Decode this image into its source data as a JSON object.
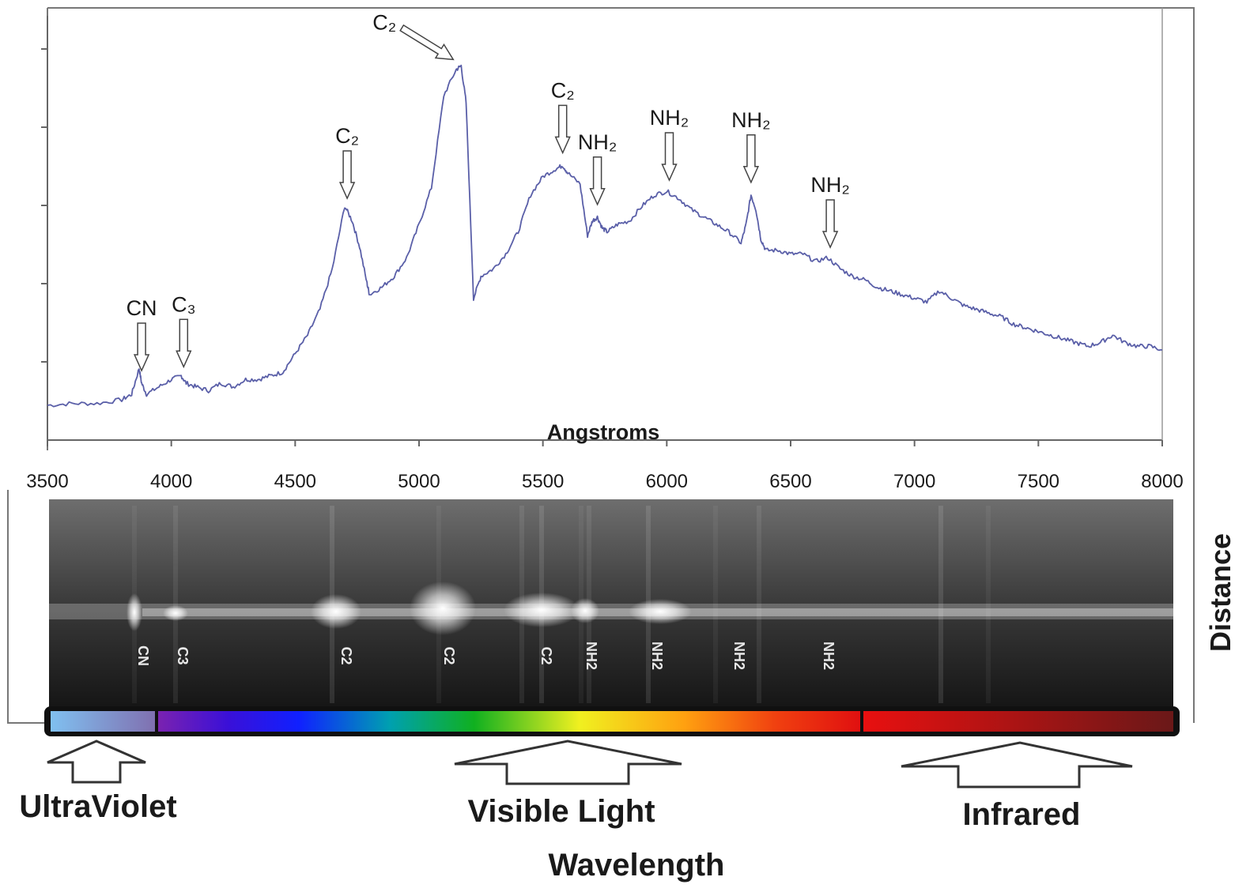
{
  "chart_data": {
    "type": "line",
    "xlabel": "Angstroms",
    "xlim": [
      3500,
      8000
    ],
    "x_ticks": [
      3500,
      4000,
      4500,
      5000,
      5500,
      6000,
      6500,
      7000,
      7500,
      8000
    ],
    "ylim": [
      0,
      100
    ],
    "series": [
      {
        "x": [
          3500,
          3600,
          3700,
          3800,
          3840,
          3870,
          3880,
          3900,
          3950,
          4000,
          4040,
          4060,
          4100,
          4150,
          4200,
          4250,
          4300,
          4350,
          4400,
          4450,
          4500,
          4550,
          4600,
          4650,
          4700,
          4730,
          4760,
          4790,
          4800,
          4850,
          4900,
          4950,
          5000,
          5050,
          5100,
          5150,
          5170,
          5190,
          5220,
          5250,
          5300,
          5350,
          5400,
          5450,
          5500,
          5550,
          5580,
          5600,
          5650,
          5680,
          5700,
          5720,
          5740,
          5760,
          5800,
          5850,
          5900,
          5950,
          6000,
          6050,
          6100,
          6150,
          6200,
          6250,
          6300,
          6320,
          6340,
          6360,
          6380,
          6400,
          6450,
          6500,
          6550,
          6600,
          6650,
          6700,
          6750,
          6800,
          6850,
          6900,
          6950,
          7000,
          7050,
          7100,
          7150,
          7200,
          7250,
          7300,
          7350,
          7400,
          7450,
          7500,
          7550,
          7600,
          7650,
          7700,
          7750,
          7800,
          7850,
          7900,
          7950,
          8000
        ],
        "y": [
          3,
          3.5,
          3.5,
          4.5,
          6,
          13,
          9,
          6,
          8,
          10,
          11,
          9,
          8,
          7,
          9,
          8,
          10,
          10,
          11,
          12,
          17,
          22,
          29,
          40,
          57,
          53,
          46,
          36,
          33,
          35,
          38,
          43,
          52,
          62,
          87,
          94,
          95,
          85,
          32,
          38,
          40,
          44,
          50,
          60,
          65,
          67,
          68,
          66,
          63,
          49,
          53,
          54,
          51,
          50,
          52,
          53,
          57,
          60,
          61,
          59,
          56,
          54,
          52,
          50,
          47,
          52,
          60,
          56,
          48,
          45,
          45,
          44,
          44,
          42,
          43,
          40,
          38,
          37,
          35,
          34,
          33,
          32,
          31,
          34,
          32,
          30,
          29,
          28,
          27,
          25,
          24,
          23,
          22,
          21,
          20,
          19,
          20,
          22,
          20,
          19,
          19,
          18
        ]
      }
    ],
    "annotations": [
      {
        "label": "CN",
        "x": 3880
      },
      {
        "label": "C₃",
        "x": 4050
      },
      {
        "label": "C₂",
        "x": 4710
      },
      {
        "label": "C₂",
        "x": 5170
      },
      {
        "label": "C₂",
        "x": 5580
      },
      {
        "label": "NH₂",
        "x": 5720
      },
      {
        "label": "NH₂",
        "x": 6010
      },
      {
        "label": "NH₂",
        "x": 6340
      },
      {
        "label": "NH₂",
        "x": 6660
      }
    ],
    "grid": false
  },
  "spectrum_image": {
    "side_label": "Distance",
    "line_labels": [
      "CN",
      "C3",
      "C2",
      "C2",
      "C2",
      "NH2",
      "NH2",
      "NH2",
      "NH2"
    ]
  },
  "bands": {
    "uv": "UltraViolet",
    "visible": "Visible Light",
    "ir": "Infrared",
    "axis_title": "Wavelength"
  },
  "colors": {
    "line": "#5a5fa8",
    "frame": "#777777"
  }
}
